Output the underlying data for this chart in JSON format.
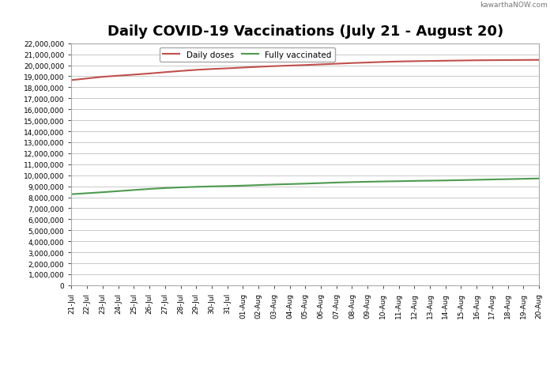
{
  "title": "Daily COVID-19 Vaccinations (July 21 - August 20)",
  "watermark": "kawarthaNOW.com",
  "legend_entries": [
    "Daily doses",
    "Fully vaccinated"
  ],
  "line_colors": [
    "#c0504d",
    "#4e9a4e"
  ],
  "dates": [
    "21-Jul",
    "22-Jul",
    "23-Jul",
    "24-Jul",
    "25-Jul",
    "26-Jul",
    "27-Jul",
    "28-Jul",
    "29-Jul",
    "30-Jul",
    "31-Jul",
    "01-Aug",
    "02-Aug",
    "03-Aug",
    "04-Aug",
    "05-Aug",
    "06-Aug",
    "07-Aug",
    "08-Aug",
    "09-Aug",
    "10-Aug",
    "11-Aug",
    "12-Aug",
    "13-Aug",
    "14-Aug",
    "15-Aug",
    "16-Aug",
    "17-Aug",
    "18-Aug",
    "19-Aug",
    "20-Aug"
  ],
  "daily_doses": [
    18650000,
    18800000,
    18950000,
    19050000,
    19150000,
    19250000,
    19370000,
    19480000,
    19580000,
    19660000,
    19720000,
    19790000,
    19860000,
    19920000,
    19970000,
    20020000,
    20080000,
    20140000,
    20200000,
    20250000,
    20300000,
    20340000,
    20370000,
    20390000,
    20410000,
    20430000,
    20450000,
    20460000,
    20470000,
    20480000,
    20490000
  ],
  "fully_vaccinated": [
    8280000,
    8370000,
    8460000,
    8560000,
    8660000,
    8760000,
    8840000,
    8900000,
    8950000,
    8990000,
    9020000,
    9060000,
    9110000,
    9160000,
    9200000,
    9240000,
    9290000,
    9340000,
    9380000,
    9410000,
    9440000,
    9460000,
    9490000,
    9510000,
    9530000,
    9560000,
    9590000,
    9620000,
    9650000,
    9680000,
    9710000
  ],
  "ylim": [
    0,
    22000000
  ],
  "ytick_step": 1000000,
  "background_color": "#ffffff",
  "plot_bg_color": "#ffffff",
  "grid_color": "#c8c8c8",
  "title_fontsize": 13,
  "tick_fontsize": 6.5,
  "legend_fontsize": 7.5,
  "watermark_fontsize": 6.5
}
